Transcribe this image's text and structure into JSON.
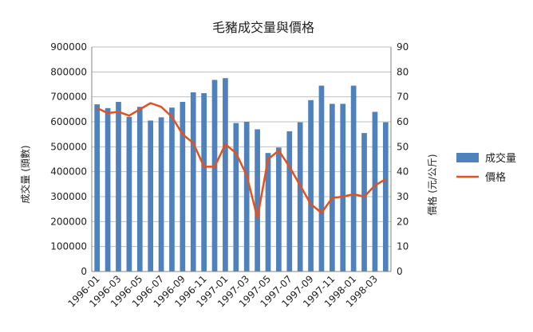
{
  "chart_data": {
    "type": "bar+line",
    "title": "毛豬成交量與價格",
    "categories": [
      "1996-01",
      "1996-02",
      "1996-03",
      "1996-04",
      "1996-05",
      "1996-06",
      "1996-07",
      "1996-08",
      "1996-09",
      "1996-10",
      "1996-11",
      "1996-12",
      "1997-01",
      "1997-02",
      "1997-03",
      "1997-04",
      "1997-05",
      "1997-06",
      "1997-07",
      "1997-08",
      "1997-09",
      "1997-10",
      "1997-11",
      "1997-12",
      "1998-01",
      "1998-02",
      "1998-03",
      "1998-04"
    ],
    "xtick_labels": [
      "1996-01",
      "1996-03",
      "1996-05",
      "1996-07",
      "1996-09",
      "1996-11",
      "1997-01",
      "1997-03",
      "1997-05",
      "1997-07",
      "1997-09",
      "1997-11",
      "1998-01",
      "1998-03"
    ],
    "ylabel_left": "成交量 (頭數)",
    "ylabel_right": "價格 (元/公斤)",
    "ylim_left": [
      0,
      900000
    ],
    "ylim_right": [
      0,
      90
    ],
    "yticks_left": [
      0,
      100000,
      200000,
      300000,
      400000,
      500000,
      600000,
      700000,
      800000,
      900000
    ],
    "yticks_right": [
      0,
      10,
      20,
      30,
      40,
      50,
      60,
      70,
      80,
      90
    ],
    "grid": true,
    "legend_position": "right",
    "series": [
      {
        "name": "成交量",
        "kind": "bar",
        "axis": "left",
        "color": "#4f81bd",
        "values": [
          670000,
          655000,
          680000,
          620000,
          660000,
          605000,
          618000,
          657000,
          680000,
          718000,
          715000,
          768000,
          775000,
          595000,
          600000,
          570000,
          475000,
          497000,
          562000,
          598000,
          687000,
          745000,
          672000,
          672000,
          745000,
          555000,
          640000,
          598000
        ]
      },
      {
        "name": "價格",
        "kind": "line",
        "axis": "right",
        "color": "#e8501a",
        "values": [
          65.5,
          63.5,
          64,
          62.5,
          65,
          67.5,
          66,
          62,
          55,
          51.5,
          42,
          42,
          51,
          47.5,
          38.5,
          21.5,
          45,
          48.5,
          42,
          34.5,
          27,
          23.5,
          29.5,
          30,
          31,
          30,
          34.5,
          37
        ]
      }
    ]
  }
}
